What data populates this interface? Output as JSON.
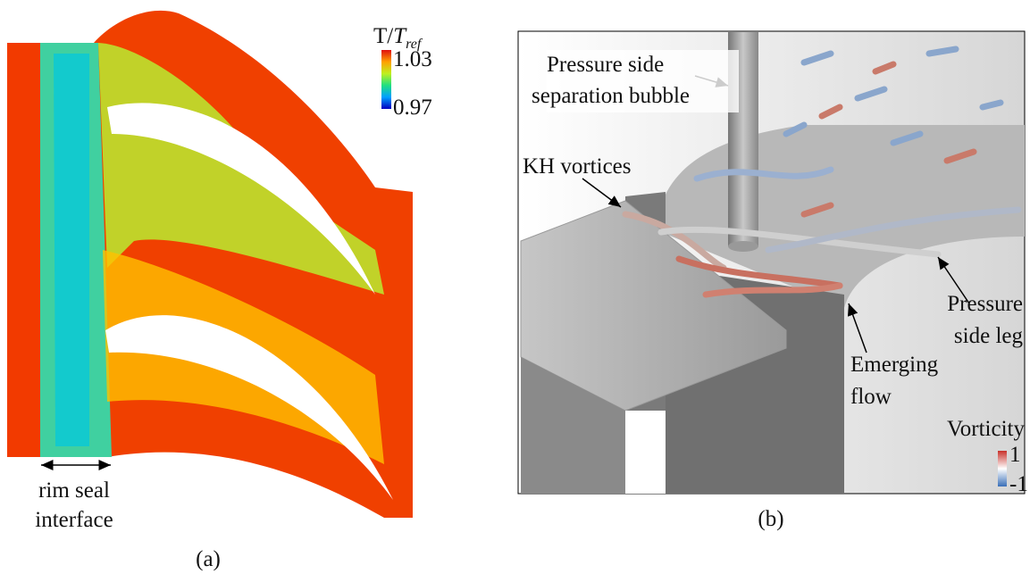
{
  "panel_a": {
    "colorbar": {
      "title_main": "T/",
      "title_italic": "T",
      "title_sub": "ref",
      "max_label": "1.03",
      "min_label": "0.97"
    },
    "annotation": {
      "lines": [
        "rim seal",
        "interface"
      ]
    },
    "caption": "(a)"
  },
  "panel_b": {
    "annotations": [
      {
        "lines": [
          "Pressure side",
          "separation bubble"
        ]
      },
      {
        "lines": [
          "KH vortices"
        ]
      },
      {
        "lines": [
          "Pressure",
          "side leg"
        ]
      },
      {
        "lines": [
          "Emerging",
          "flow"
        ]
      }
    ],
    "colorbar": {
      "title": "Vorticity",
      "max_label": "1",
      "min_label": "-1"
    },
    "caption": "(b)"
  }
}
